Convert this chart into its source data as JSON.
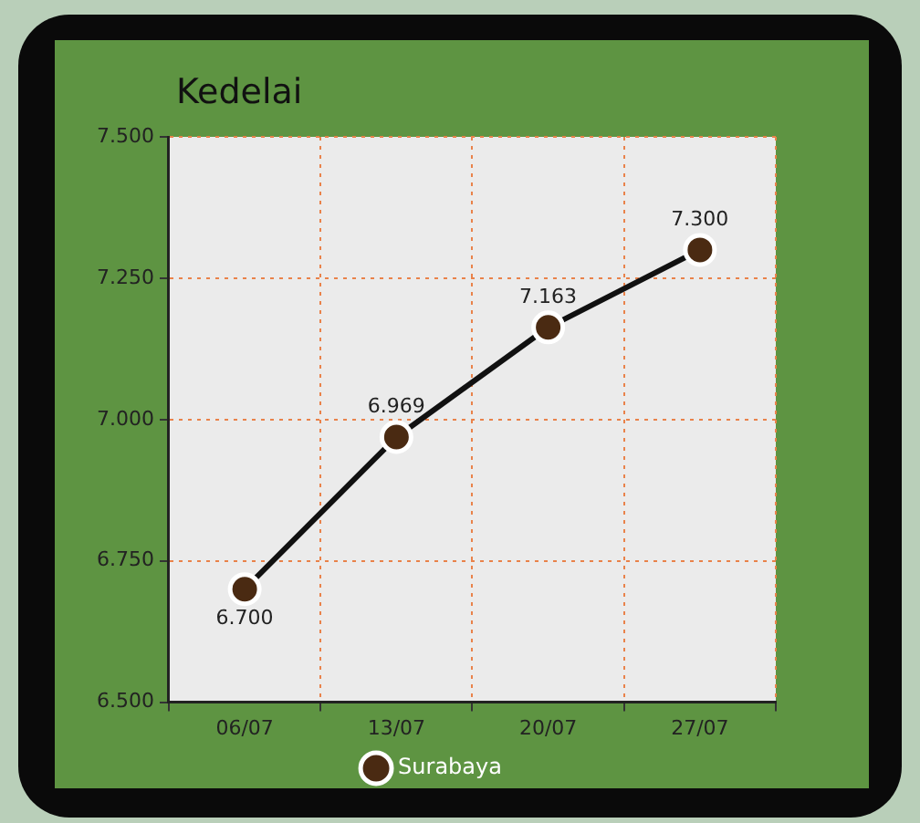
{
  "chart_data": {
    "type": "line",
    "title": "Kedelai",
    "categories": [
      "06/07",
      "13/07",
      "20/07",
      "27/07"
    ],
    "series": [
      {
        "name": "Surabaya",
        "color": "#4a2a12",
        "values": [
          6700,
          6969,
          7163,
          7300
        ],
        "value_labels": [
          "6.700",
          "6.969",
          "7.163",
          "7.300"
        ]
      }
    ],
    "ylim": [
      6500,
      7500
    ],
    "yticks": [
      {
        "value": 6500,
        "label": "6.500"
      },
      {
        "value": 6750,
        "label": "6.750"
      },
      {
        "value": 7000,
        "label": "7.000"
      },
      {
        "value": 7250,
        "label": "7.250"
      },
      {
        "value": 7500,
        "label": "7.500"
      }
    ],
    "grid": true,
    "legend": "bottom",
    "marker": "circle",
    "line_style": "solid"
  }
}
